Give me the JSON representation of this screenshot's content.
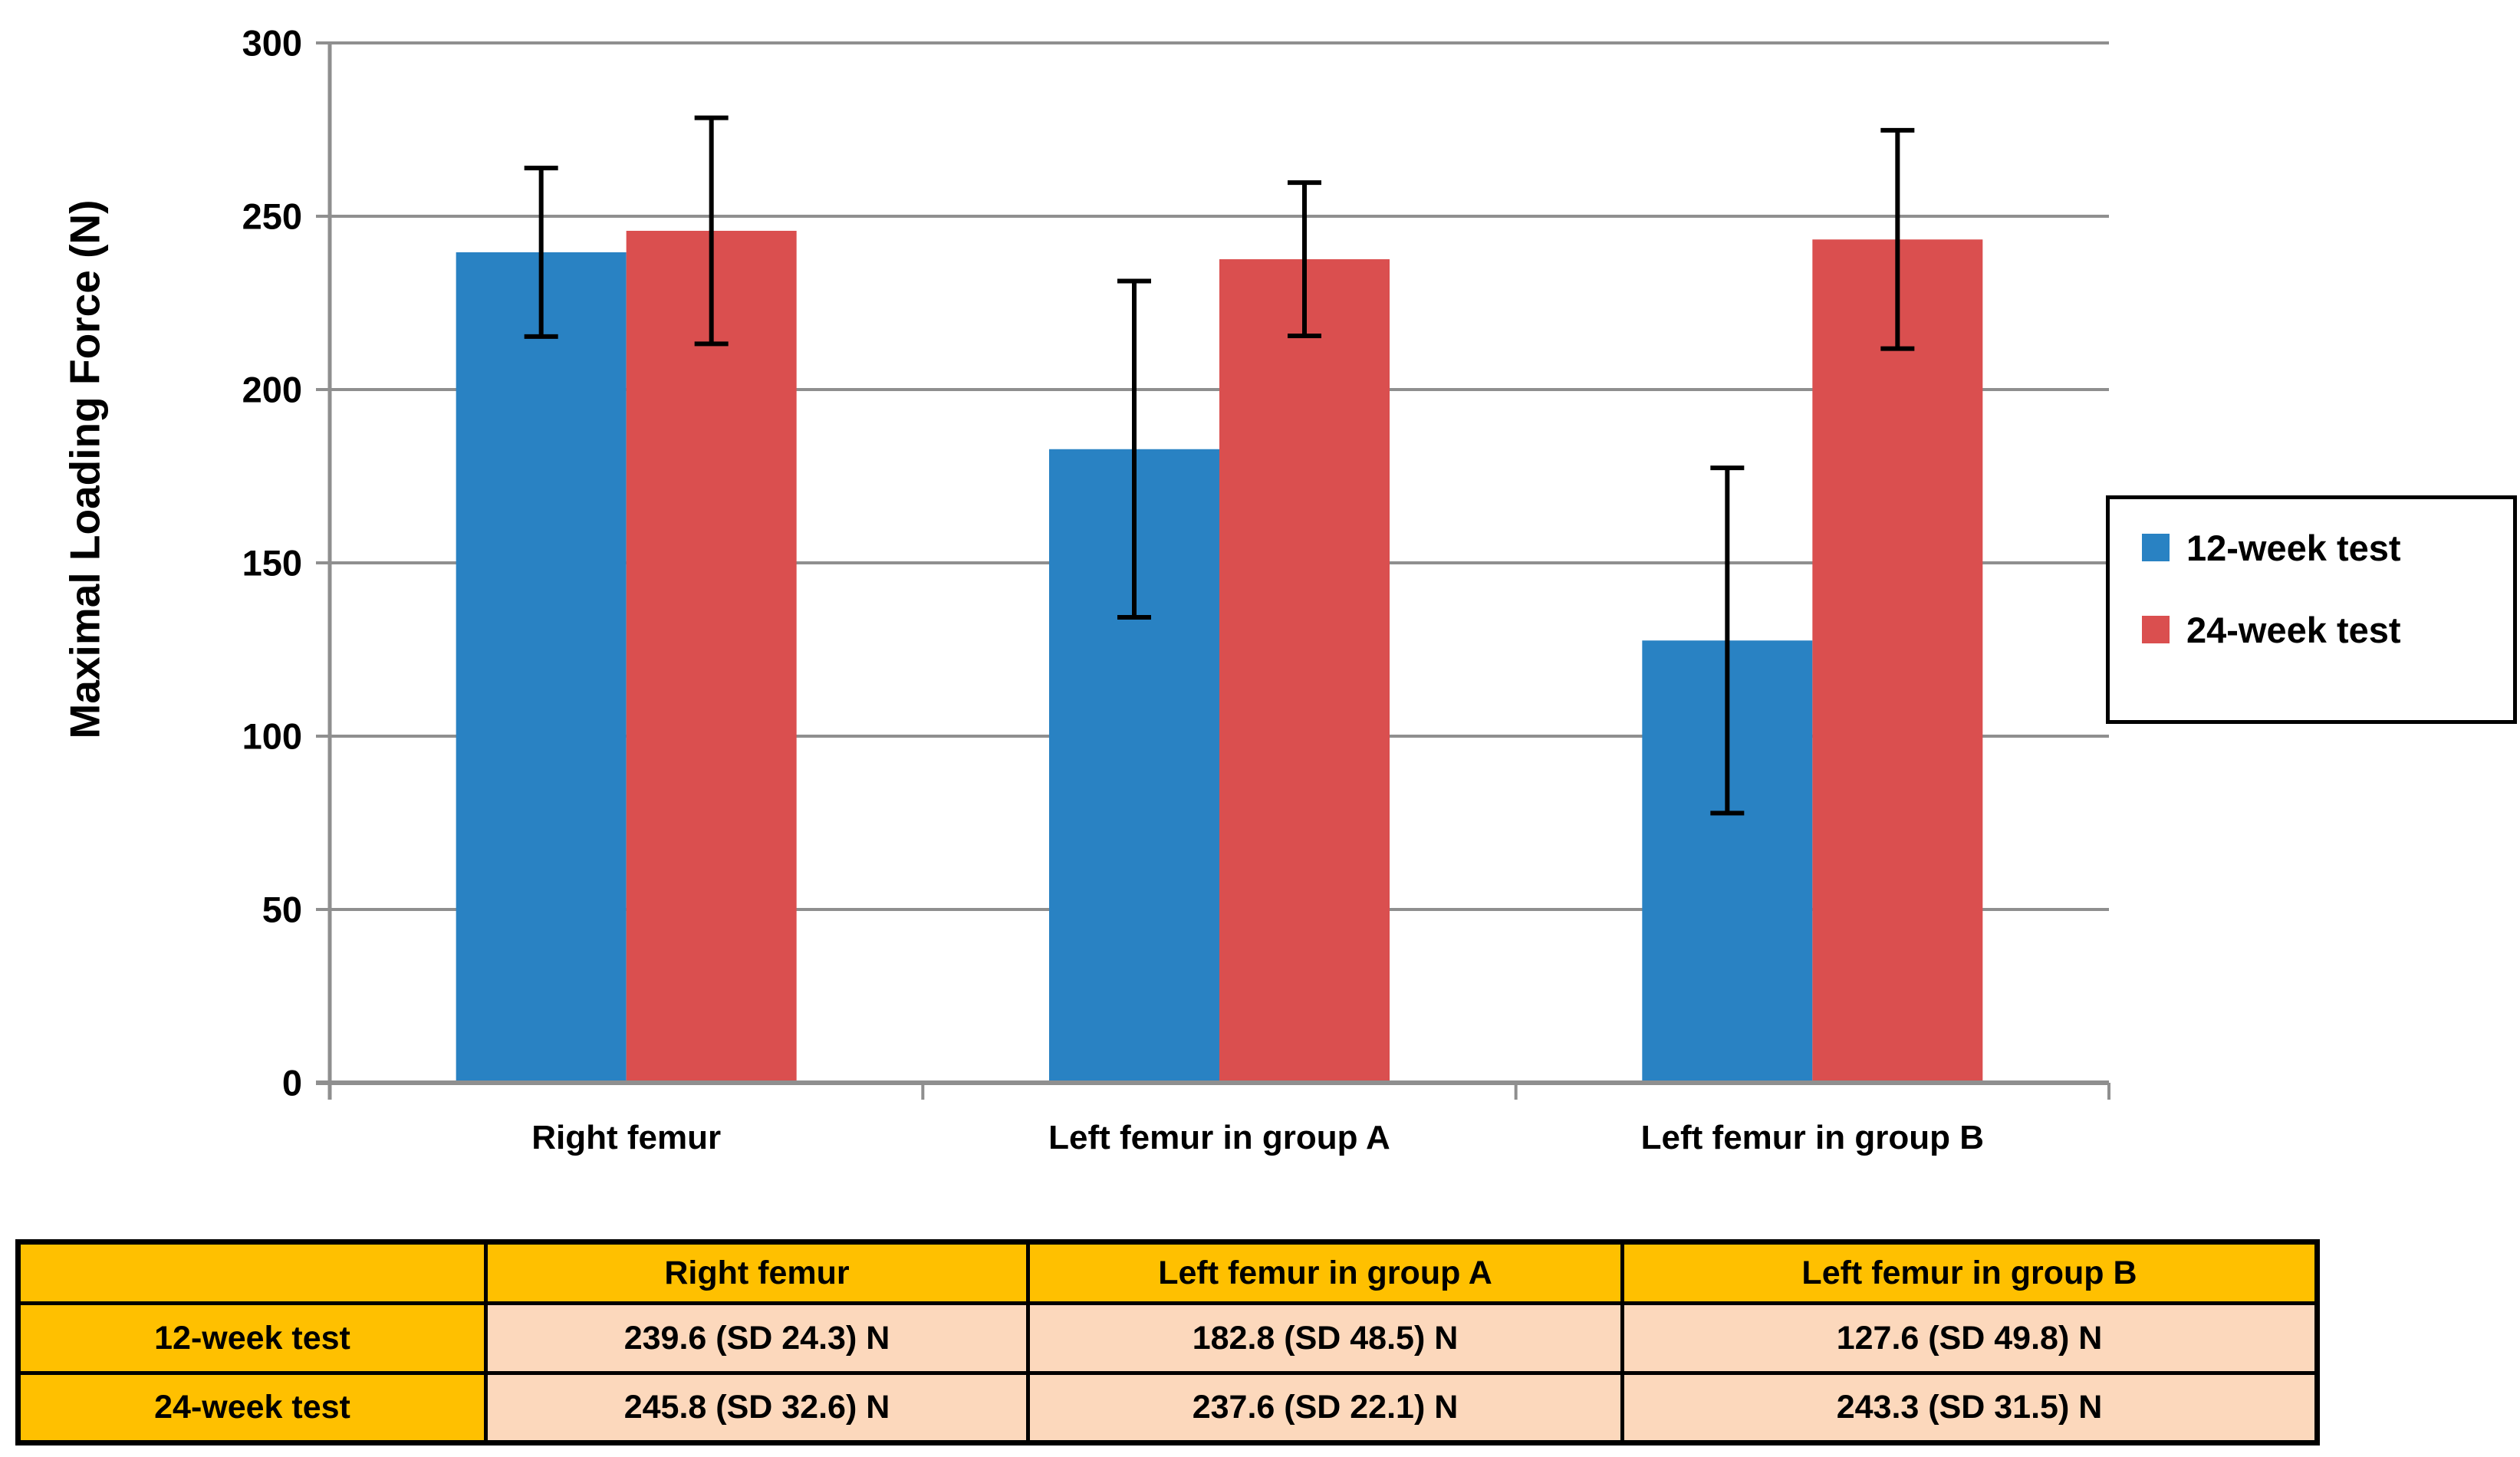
{
  "page": {
    "background": "#FFFFFF"
  },
  "chart_data": {
    "type": "bar",
    "title": "",
    "ylabel": "Maximal Loading Force (N)",
    "xlabel": "",
    "categories": [
      "Right femur",
      "Left femur in group A",
      "Left femur in group B"
    ],
    "series": [
      {
        "name": "12-week test",
        "color": "#2982C3",
        "values": [
          239.6,
          182.8,
          127.6
        ],
        "sd": [
          24.3,
          48.5,
          49.8
        ]
      },
      {
        "name": "24-week test",
        "color": "#DA4F4F",
        "values": [
          245.8,
          237.6,
          243.3
        ],
        "sd": [
          32.6,
          22.1,
          31.5
        ]
      }
    ],
    "ylim": [
      0,
      300
    ],
    "yticks": [
      0,
      50,
      100,
      150,
      200,
      250,
      300
    ],
    "grid": true,
    "gridline_color": "#8F8F8F",
    "axis_color": "#8F8F8F",
    "error_bars": true,
    "error_bar_color": "#000000",
    "legend_position": "right"
  },
  "table": {
    "corner": "",
    "columns": [
      "Right femur",
      "Left femur in group A",
      "Left femur in group B"
    ],
    "rows": [
      {
        "label": "12-week test",
        "values": [
          "239.6 (SD 24.3) N",
          "182.8 (SD 48.5) N",
          "127.6 (SD 49.8) N"
        ]
      },
      {
        "label": "24-week test",
        "values": [
          "245.8 (SD 32.6) N",
          "237.6 (SD 22.1) N",
          "243.3 (SD 31.5) N"
        ]
      }
    ],
    "header_bg": "#FFC000",
    "cell_bg": "#FCD8BC"
  }
}
